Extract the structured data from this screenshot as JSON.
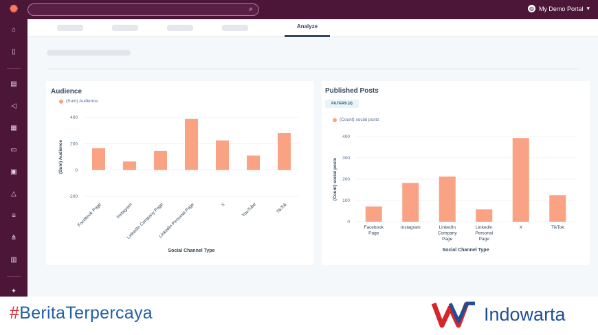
{
  "header": {
    "portal_name": "My Demo Portal",
    "logo_icon": "hubspot-logo",
    "search_icon": "search-icon"
  },
  "sidebar": {
    "icons": [
      "home-icon",
      "bookmark-icon",
      "contacts-icon",
      "megaphone-icon",
      "document-icon",
      "store-icon",
      "wallet-icon",
      "house-icon",
      "database-icon",
      "network-icon",
      "bar-chart-icon",
      "sparkle-icon"
    ]
  },
  "tabs": {
    "active": "Analyze"
  },
  "cards": {
    "audience": {
      "title": "Audience"
    },
    "published": {
      "title": "Published Posts",
      "filters": "FILTERS (2)"
    }
  },
  "chart_data": [
    {
      "type": "bar",
      "title": "Audience",
      "legend": "(Sum) Audience",
      "categories": [
        "Facebook Page",
        "Instagram",
        "LinkedIn Company Page",
        "LinkedIn Personal Page",
        "X",
        "YouTube",
        "TikTok"
      ],
      "values": [
        165,
        65,
        145,
        390,
        225,
        110,
        280
      ],
      "xlabel": "Social Channel Type",
      "ylabel": "(Sum) Audience",
      "ylim": [
        -200,
        400
      ],
      "yticks": [
        400,
        200,
        0,
        -200
      ],
      "color": "#f9a384"
    },
    {
      "type": "bar",
      "title": "Published Posts",
      "legend": "(Count) social posts",
      "categories": [
        "Facebook Page",
        "Instagram",
        "LinkedIn Company Page",
        "LinkedIn Personal Page",
        "X",
        "TikTok"
      ],
      "values": [
        72,
        182,
        212,
        58,
        393,
        125
      ],
      "xlabel": "Social Channel Type",
      "ylabel": "(Count) social posts",
      "ylim": [
        0,
        400
      ],
      "yticks": [
        400,
        300,
        200,
        100,
        0
      ],
      "color": "#f9a384"
    }
  ],
  "footer": {
    "hash": "#",
    "tagline_word1": "Berita",
    "tagline_word2": "Terpercaya",
    "brand": "Indowarta",
    "brand_colors": [
      "#d6262b",
      "#1f4e96"
    ]
  }
}
